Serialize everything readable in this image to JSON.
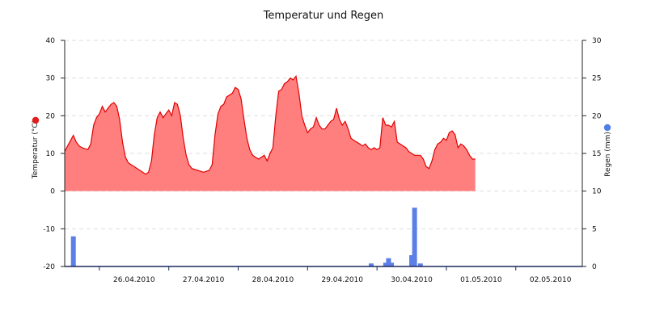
{
  "chart_data": {
    "type": "line",
    "title": "Temperatur und Regen",
    "grid": true,
    "x": {
      "start": "2010-04-25T12:00",
      "end": "2010-05-02T23:00",
      "tick_labels": [
        "26.04.2010",
        "27.04.2010",
        "28.04.2010",
        "29.04.2010",
        "30.04.2010",
        "01.05.2010",
        "02.05.2010"
      ]
    },
    "left_axis": {
      "label": "Temperatur (°C)",
      "ylim": [
        -20,
        40
      ],
      "ticks": [
        -20,
        -10,
        0,
        10,
        20,
        30,
        40
      ],
      "marker_color": "#e11c1c"
    },
    "right_axis": {
      "label": "Regen (mm)",
      "ylim": [
        0,
        30
      ],
      "ticks": [
        0,
        5,
        10,
        15,
        20,
        25,
        30
      ],
      "marker_color": "#4f7ee6"
    },
    "series": [
      {
        "name": "Temperatur",
        "axis": "left",
        "kind": "area",
        "line_color": "#e00000",
        "fill_color": "#ff7f7f",
        "points": [
          [
            "2010-04-25T12:00",
            10.5
          ],
          [
            "2010-04-25T13:00",
            12.0
          ],
          [
            "2010-04-25T15:00",
            14.8
          ],
          [
            "2010-04-25T16:00",
            13.0
          ],
          [
            "2010-04-25T17:00",
            12.0
          ],
          [
            "2010-04-25T18:00",
            11.5
          ],
          [
            "2010-04-25T20:00",
            11.0
          ],
          [
            "2010-04-25T21:00",
            12.5
          ],
          [
            "2010-04-25T22:00",
            17.5
          ],
          [
            "2010-04-25T23:00",
            19.5
          ],
          [
            "2010-04-26T00:00",
            20.5
          ],
          [
            "2010-04-26T01:00",
            22.5
          ],
          [
            "2010-04-26T02:00",
            21.0
          ],
          [
            "2010-04-26T03:00",
            22.0
          ],
          [
            "2010-04-26T04:00",
            23.0
          ],
          [
            "2010-04-26T05:00",
            23.5
          ],
          [
            "2010-04-26T06:00",
            22.5
          ],
          [
            "2010-04-26T07:00",
            19.0
          ],
          [
            "2010-04-26T08:00",
            13.0
          ],
          [
            "2010-04-26T09:00",
            9.0
          ],
          [
            "2010-04-26T10:00",
            7.5
          ],
          [
            "2010-04-26T12:00",
            6.5
          ],
          [
            "2010-04-26T14:00",
            5.5
          ],
          [
            "2010-04-26T16:00",
            4.5
          ],
          [
            "2010-04-26T17:00",
            5.0
          ],
          [
            "2010-04-26T18:00",
            8.0
          ],
          [
            "2010-04-26T19:00",
            15.0
          ],
          [
            "2010-04-26T20:00",
            19.5
          ],
          [
            "2010-04-26T21:00",
            21.0
          ],
          [
            "2010-04-26T22:00",
            19.5
          ],
          [
            "2010-04-26T23:00",
            20.5
          ],
          [
            "2010-04-27T00:00",
            21.5
          ],
          [
            "2010-04-27T01:00",
            20.0
          ],
          [
            "2010-04-27T02:00",
            23.5
          ],
          [
            "2010-04-27T03:00",
            23.0
          ],
          [
            "2010-04-27T04:00",
            20.0
          ],
          [
            "2010-04-27T05:00",
            14.0
          ],
          [
            "2010-04-27T06:00",
            9.5
          ],
          [
            "2010-04-27T07:00",
            7.0
          ],
          [
            "2010-04-27T08:00",
            6.0
          ],
          [
            "2010-04-27T10:00",
            5.5
          ],
          [
            "2010-04-27T12:00",
            5.0
          ],
          [
            "2010-04-27T14:00",
            5.5
          ],
          [
            "2010-04-27T15:00",
            7.0
          ],
          [
            "2010-04-27T16:00",
            15.0
          ],
          [
            "2010-04-27T17:00",
            20.5
          ],
          [
            "2010-04-27T18:00",
            22.5
          ],
          [
            "2010-04-27T19:00",
            23.0
          ],
          [
            "2010-04-27T20:00",
            25.0
          ],
          [
            "2010-04-27T21:00",
            25.5
          ],
          [
            "2010-04-27T22:00",
            26.0
          ],
          [
            "2010-04-27T23:00",
            27.5
          ],
          [
            "2010-04-28T00:00",
            27.0
          ],
          [
            "2010-04-28T01:00",
            24.5
          ],
          [
            "2010-04-28T02:00",
            19.0
          ],
          [
            "2010-04-28T03:00",
            14.0
          ],
          [
            "2010-04-28T04:00",
            11.0
          ],
          [
            "2010-04-28T05:00",
            9.5
          ],
          [
            "2010-04-28T06:00",
            9.0
          ],
          [
            "2010-04-28T07:00",
            8.5
          ],
          [
            "2010-04-28T08:00",
            9.0
          ],
          [
            "2010-04-28T09:00",
            9.5
          ],
          [
            "2010-04-28T10:00",
            8.0
          ],
          [
            "2010-04-28T11:00",
            10.0
          ],
          [
            "2010-04-28T12:00",
            11.5
          ],
          [
            "2010-04-28T13:00",
            20.0
          ],
          [
            "2010-04-28T14:00",
            26.5
          ],
          [
            "2010-04-28T15:00",
            27.0
          ],
          [
            "2010-04-28T16:00",
            28.5
          ],
          [
            "2010-04-28T17:00",
            29.0
          ],
          [
            "2010-04-28T18:00",
            30.0
          ],
          [
            "2010-04-28T19:00",
            29.5
          ],
          [
            "2010-04-28T20:00",
            30.5
          ],
          [
            "2010-04-28T21:00",
            26.0
          ],
          [
            "2010-04-28T22:00",
            20.0
          ],
          [
            "2010-04-28T23:00",
            17.5
          ],
          [
            "2010-04-29T00:00",
            15.5
          ],
          [
            "2010-04-29T01:00",
            16.5
          ],
          [
            "2010-04-29T02:00",
            17.0
          ],
          [
            "2010-04-29T03:00",
            19.5
          ],
          [
            "2010-04-29T04:00",
            17.5
          ],
          [
            "2010-04-29T05:00",
            16.5
          ],
          [
            "2010-04-29T06:00",
            16.5
          ],
          [
            "2010-04-29T07:00",
            17.5
          ],
          [
            "2010-04-29T08:00",
            18.5
          ],
          [
            "2010-04-29T09:00",
            19.0
          ],
          [
            "2010-04-29T10:00",
            22.0
          ],
          [
            "2010-04-29T11:00",
            19.0
          ],
          [
            "2010-04-29T12:00",
            17.5
          ],
          [
            "2010-04-29T13:00",
            18.5
          ],
          [
            "2010-04-29T14:00",
            16.5
          ],
          [
            "2010-04-29T15:00",
            14.0
          ],
          [
            "2010-04-29T16:00",
            13.5
          ],
          [
            "2010-04-29T17:00",
            13.0
          ],
          [
            "2010-04-29T18:00",
            12.5
          ],
          [
            "2010-04-29T19:00",
            12.0
          ],
          [
            "2010-04-29T20:00",
            12.5
          ],
          [
            "2010-04-29T21:00",
            11.5
          ],
          [
            "2010-04-29T22:00",
            11.0
          ],
          [
            "2010-04-29T23:00",
            11.5
          ],
          [
            "2010-04-30T00:00",
            11.0
          ],
          [
            "2010-04-30T01:00",
            11.5
          ],
          [
            "2010-04-30T02:00",
            19.5
          ],
          [
            "2010-04-30T03:00",
            17.5
          ],
          [
            "2010-04-30T04:00",
            17.5
          ],
          [
            "2010-04-30T05:00",
            17.0
          ],
          [
            "2010-04-30T06:00",
            18.5
          ],
          [
            "2010-04-30T07:00",
            13.0
          ],
          [
            "2010-04-30T08:00",
            12.5
          ],
          [
            "2010-04-30T09:00",
            12.0
          ],
          [
            "2010-04-30T10:00",
            11.5
          ],
          [
            "2010-04-30T11:00",
            10.5
          ],
          [
            "2010-04-30T12:00",
            10.0
          ],
          [
            "2010-04-30T13:00",
            9.5
          ],
          [
            "2010-04-30T14:00",
            9.5
          ],
          [
            "2010-04-30T15:00",
            9.5
          ],
          [
            "2010-04-30T16:00",
            8.5
          ],
          [
            "2010-04-30T17:00",
            6.5
          ],
          [
            "2010-04-30T18:00",
            6.0
          ],
          [
            "2010-04-30T19:00",
            8.0
          ],
          [
            "2010-04-30T20:00",
            11.0
          ],
          [
            "2010-04-30T21:00",
            12.5
          ],
          [
            "2010-04-30T22:00",
            13.0
          ],
          [
            "2010-04-30T23:00",
            14.0
          ],
          [
            "2010-05-01T00:00",
            13.5
          ],
          [
            "2010-05-01T01:00",
            15.5
          ],
          [
            "2010-05-01T02:00",
            16.0
          ],
          [
            "2010-05-01T03:00",
            15.0
          ],
          [
            "2010-05-01T04:00",
            11.5
          ],
          [
            "2010-05-01T05:00",
            12.5
          ],
          [
            "2010-05-01T06:00",
            12.0
          ],
          [
            "2010-05-01T07:00",
            11.0
          ],
          [
            "2010-05-01T08:00",
            9.5
          ],
          [
            "2010-05-01T09:00",
            8.5
          ],
          [
            "2010-05-01T10:00",
            8.5
          ]
        ]
      },
      {
        "name": "Regen",
        "axis": "right",
        "kind": "bar",
        "color": "#5b7fe6",
        "points": [
          [
            "2010-04-25T15:00",
            4.0
          ],
          [
            "2010-04-29T22:00",
            0.4
          ],
          [
            "2010-04-30T03:00",
            0.5
          ],
          [
            "2010-04-30T04:00",
            1.1
          ],
          [
            "2010-04-30T05:00",
            0.5
          ],
          [
            "2010-04-30T12:00",
            1.5
          ],
          [
            "2010-04-30T13:00",
            7.8
          ],
          [
            "2010-04-30T15:00",
            0.4
          ]
        ]
      }
    ]
  }
}
